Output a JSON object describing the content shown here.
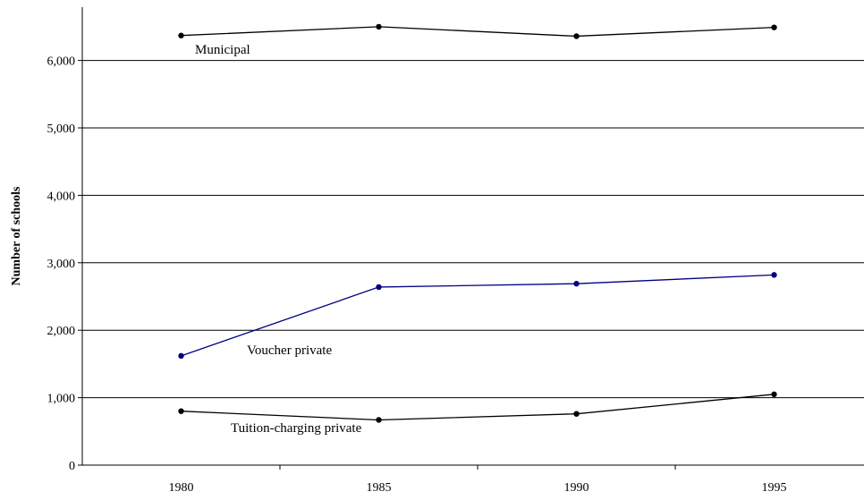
{
  "chart_data": {
    "type": "line",
    "title": "",
    "xlabel": "",
    "ylabel": "Number of schools",
    "categories": [
      "1980",
      "1985",
      "1990",
      "1995"
    ],
    "ylim": [
      0,
      7000
    ],
    "yticks": [
      0,
      1000,
      2000,
      3000,
      4000,
      5000,
      6000
    ],
    "ytick_labels": [
      "0",
      "1,000",
      "2,000",
      "3,000",
      "4,000",
      "5,000",
      "6,000"
    ],
    "grid": "horizontal",
    "legend": "inline labels",
    "series": [
      {
        "name": "Municipal",
        "color": "#000000",
        "values": [
          6370,
          6500,
          6360,
          6490
        ]
      },
      {
        "name": "Voucher private",
        "color": "#000080",
        "values": [
          1620,
          2640,
          2690,
          2820
        ]
      },
      {
        "name": "Tuition-charging private",
        "color": "#000000",
        "values": [
          800,
          670,
          760,
          1050
        ]
      }
    ]
  }
}
